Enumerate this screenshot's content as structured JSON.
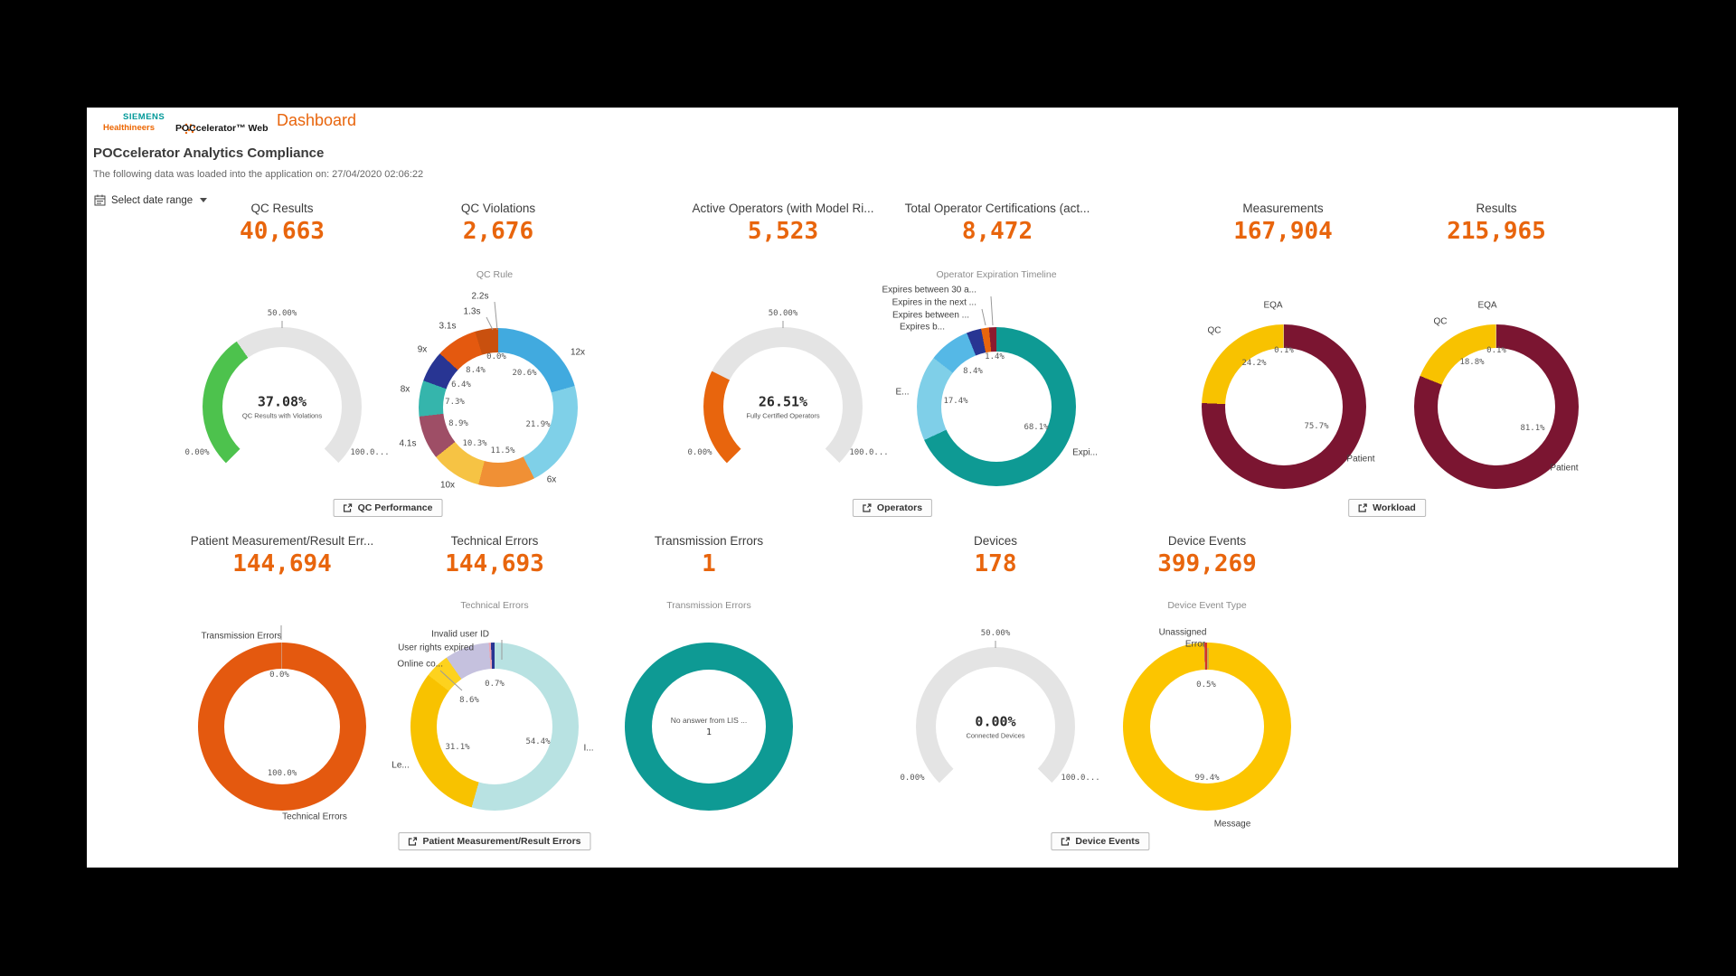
{
  "header": {
    "brand_line1": "SIEMENS",
    "brand_line2": "Healthineers",
    "product_name": "POCcelerator™ Web",
    "page_name": "Dashboard"
  },
  "page": {
    "title": "POCcelerator Analytics Compliance",
    "subtitle": "The following data was loaded into the application on: 27/04/2020 02:06:22",
    "date_range_label": "Select date range"
  },
  "colors": {
    "accent_orange": "#e8650d",
    "teal": "#0e9a94",
    "gauge_track": "#e4e4e4",
    "maroon": "#7b1531",
    "yellow": "#f8c200"
  },
  "kpis": [
    {
      "id": "qc-results",
      "label": "QC Results",
      "value": "40,663"
    },
    {
      "id": "qc-violations",
      "label": "QC Violations",
      "value": "2,676"
    },
    {
      "id": "active-operators",
      "label": "Active Operators (with Model Ri...",
      "value": "5,523"
    },
    {
      "id": "total-certs",
      "label": "Total Operator Certifications (act...",
      "value": "8,472"
    },
    {
      "id": "measurements",
      "label": "Measurements",
      "value": "167,904"
    },
    {
      "id": "results",
      "label": "Results",
      "value": "215,965"
    },
    {
      "id": "pm-errors",
      "label": "Patient Measurement/Result Err...",
      "value": "144,694"
    },
    {
      "id": "technical-errors",
      "label": "Technical Errors",
      "value": "144,693"
    },
    {
      "id": "transmission-errors",
      "label": "Transmission Errors",
      "value": "1"
    },
    {
      "id": "devices",
      "label": "Devices",
      "value": "178"
    },
    {
      "id": "device-events",
      "label": "Device Events",
      "value": "399,269"
    }
  ],
  "buttons": [
    {
      "id": "qc-performance",
      "label": "QC Performance"
    },
    {
      "id": "operators",
      "label": "Operators"
    },
    {
      "id": "workload",
      "label": "Workload"
    },
    {
      "id": "pm-result-errors",
      "label": "Patient Measurement/Result Errors"
    },
    {
      "id": "device-events",
      "label": "Device Events"
    }
  ],
  "chart_data": [
    {
      "id": "qc-results-gauge",
      "type": "gauge",
      "title": null,
      "gauge": {
        "value": 37.08,
        "color": "#4dc24d"
      },
      "center": {
        "value": "37.08%",
        "label": "QC Results with Violations"
      },
      "axis_labels": [
        {
          "text": "50.00%",
          "pos": [
            0,
            -103
          ]
        },
        {
          "text": "0.00%",
          "pos": [
            -94,
            51
          ]
        },
        {
          "text": "100.0...",
          "pos": [
            97,
            51
          ]
        }
      ],
      "lines": [
        [
          0,
          -95,
          0,
          -87
        ]
      ]
    },
    {
      "id": "qc-violations",
      "type": "donut",
      "title": "QC Rule",
      "title_pos": [
        -4,
        -147
      ],
      "segments": [
        {
          "label": "12x",
          "value": 20.6,
          "color": "#41aadf",
          "outer_pos": [
            88,
            -61
          ],
          "inner_label": "20.6%",
          "inner_pos": [
            29,
            -38
          ]
        },
        {
          "label": "6x",
          "value": 21.9,
          "color": "#7fd0e8",
          "outer_pos": [
            59,
            80
          ],
          "inner_label": "21.9%",
          "inner_pos": [
            44,
            19
          ]
        },
        {
          "label": "10x",
          "value": 11.5,
          "color": "#f09035",
          "outer_pos": [
            -56,
            86
          ],
          "inner_label": "11.5%",
          "inner_pos": [
            5,
            48
          ]
        },
        {
          "label": "4.1s",
          "value": 10.3,
          "color": "#f6c344",
          "outer_pos": [
            -100,
            40
          ],
          "inner_label": "10.3%",
          "inner_pos": [
            -26,
            40
          ]
        },
        {
          "label": "8x",
          "value": 8.9,
          "color": "#9e4e66",
          "outer_pos": [
            -103,
            -20
          ],
          "inner_label": "8.9%",
          "inner_pos": [
            -44,
            18
          ]
        },
        {
          "label": "9x",
          "value": 7.3,
          "color": "#35b5ac",
          "outer_pos": [
            -84,
            -64
          ],
          "inner_label": "7.3%",
          "inner_pos": [
            -48,
            -6
          ]
        },
        {
          "label": "3.1s",
          "value": 6.4,
          "color": "#283593",
          "outer_pos": [
            -56,
            -90
          ],
          "inner_label": "6.4%",
          "inner_pos": [
            -41,
            -25
          ]
        },
        {
          "label": "1.3s",
          "value": 8.4,
          "color": "#e4590f",
          "outer_pos": [
            -29,
            -106
          ],
          "inner_label": "8.4%",
          "inner_pos": [
            -25,
            -41
          ]
        },
        {
          "label": "2.2s",
          "value": 4.7,
          "color": "#c9500e",
          "outer_pos": [
            -20,
            -123
          ],
          "inner_label": null,
          "inner_pos": null
        }
      ],
      "extra_labels": [
        {
          "text": "0.0%",
          "pos": [
            -2,
            -56
          ],
          "cls": "pct"
        }
      ],
      "lines": [
        [
          -13,
          -100,
          -6,
          -86
        ],
        [
          -4,
          -117,
          -1,
          -86
        ]
      ]
    },
    {
      "id": "active-operators-gauge",
      "type": "gauge",
      "title": null,
      "gauge": {
        "value": 26.51,
        "color": "#e8650d"
      },
      "center": {
        "value": "26.51%",
        "label": "Fully Certified Operators"
      },
      "axis_labels": [
        {
          "text": "50.00%",
          "pos": [
            0,
            -103
          ]
        },
        {
          "text": "0.00%",
          "pos": [
            -92,
            51
          ]
        },
        {
          "text": "100.0...",
          "pos": [
            95,
            51
          ]
        }
      ],
      "lines": [
        [
          0,
          -95,
          0,
          -87
        ]
      ]
    },
    {
      "id": "operator-expiration",
      "type": "donut",
      "title": "Operator Expiration Timeline",
      "title_pos": [
        0,
        -146
      ],
      "segments": [
        {
          "label": "Expi...",
          "value": 68.1,
          "color": "#0e9a94",
          "outer_pos": [
            98,
            51
          ],
          "inner_label": "68.1%",
          "inner_pos": [
            44,
            23
          ]
        },
        {
          "label": "E...",
          "value": 17.4,
          "color": "#7fcfe8",
          "outer_pos": [
            -104,
            -16
          ],
          "inner_label": "17.4%",
          "inner_pos": [
            -45,
            -6
          ]
        },
        {
          "label": "Expires b...",
          "value": 8.4,
          "color": "#55b8e6",
          "outer_pos": [
            -57,
            -88
          ],
          "align": "r",
          "inner_label": "8.4%",
          "inner_pos": [
            -26,
            -39
          ]
        },
        {
          "label": "Expires between ...",
          "value": 3.0,
          "color": "#283593",
          "outer_pos": [
            -30,
            -101
          ],
          "align": "r",
          "inner_label": null,
          "inner_pos": null
        },
        {
          "label": "Expires in the next ...",
          "value": 1.6,
          "color": "#e8650d",
          "outer_pos": [
            -22,
            -115
          ],
          "align": "r",
          "inner_label": null,
          "inner_pos": null
        },
        {
          "label": "Expires between 30 a...",
          "value": 1.5,
          "color": "#8c1b2f",
          "outer_pos": [
            -22,
            -129
          ],
          "align": "r",
          "inner_label": null,
          "inner_pos": null
        }
      ],
      "extra_labels": [
        {
          "text": "1.4%",
          "pos": [
            -2,
            -55
          ],
          "cls": "pct"
        }
      ],
      "lines": [
        [
          -16,
          -108,
          -12,
          -90
        ],
        [
          -6,
          -122,
          -4,
          -90
        ]
      ]
    },
    {
      "id": "measurements",
      "type": "donut",
      "title": null,
      "segments": [
        {
          "label": "Patient",
          "value": 75.7,
          "color": "#7b1531",
          "outer_pos": [
            85,
            58
          ],
          "inner_label": "75.7%",
          "inner_pos": [
            36,
            22
          ]
        },
        {
          "label": "QC",
          "value": 24.2,
          "color": "#f8c200",
          "outer_pos": [
            -77,
            -84
          ],
          "inner_label": "24.2%",
          "inner_pos": [
            -33,
            -48
          ]
        },
        {
          "label": "EQA",
          "value": 0.1,
          "color": "#cccccc",
          "outer_pos": [
            -12,
            -112
          ],
          "inner_label": "0.1%",
          "inner_pos": [
            0,
            -62
          ]
        }
      ]
    },
    {
      "id": "results",
      "type": "donut",
      "title": null,
      "segments": [
        {
          "label": "Patient",
          "value": 81.1,
          "color": "#7b1531",
          "outer_pos": [
            75,
            68
          ],
          "inner_label": "81.1%",
          "inner_pos": [
            40,
            24
          ]
        },
        {
          "label": "QC",
          "value": 18.8,
          "color": "#f8c200",
          "outer_pos": [
            -62,
            -94
          ],
          "inner_label": "18.8%",
          "inner_pos": [
            -27,
            -49
          ]
        },
        {
          "label": "EQA",
          "value": 0.1,
          "color": "#cccccc",
          "outer_pos": [
            -10,
            -112
          ],
          "inner_label": "0.1%",
          "inner_pos": [
            0,
            -62
          ]
        }
      ]
    },
    {
      "id": "pm-errors",
      "type": "donut",
      "title": null,
      "segments": [
        {
          "label": "Technical Errors",
          "value": 99.9,
          "color": "#e4590f",
          "outer_pos": [
            36,
            100
          ],
          "inner_label": "100.0%",
          "inner_pos": [
            0,
            52
          ]
        },
        {
          "label": "Transmission Errors",
          "value": 0.1,
          "color": "#c8c8c8",
          "outer_pos": [
            -45,
            -100
          ],
          "inner_label": "0.0%",
          "inner_pos": [
            -3,
            -57
          ]
        }
      ],
      "lines": [
        [
          -1,
          -112,
          -1,
          -96
        ]
      ]
    },
    {
      "id": "technical-errors",
      "type": "donut",
      "title": "Technical Errors",
      "title_pos": [
        0,
        -134
      ],
      "segments": [
        {
          "label": "I...",
          "value": 54.4,
          "color": "#b8e2e2",
          "outer_pos": [
            104,
            24
          ],
          "inner_label": "54.4%",
          "inner_pos": [
            48,
            17
          ]
        },
        {
          "label": "Le...",
          "value": 31.1,
          "color": "#f8c200",
          "outer_pos": [
            -104,
            43
          ],
          "inner_label": "31.1%",
          "inner_pos": [
            -41,
            23
          ]
        },
        {
          "label": "Online co...",
          "value": 4.8,
          "color": "#fdd21e",
          "outer_pos": [
            -57,
            -69
          ],
          "align": "r",
          "inner_label": null,
          "inner_pos": null
        },
        {
          "label": "User rights expired",
          "value": 8.6,
          "color": "#c5c1de",
          "outer_pos": [
            -23,
            -87
          ],
          "align": "r",
          "inner_label": "8.6%",
          "inner_pos": [
            -28,
            -29
          ]
        },
        {
          "label": "",
          "value": 0.4,
          "color": "#eba6b3",
          "outer_pos": null,
          "inner_label": null,
          "inner_pos": null
        },
        {
          "label": "Invalid user ID",
          "value": 0.7,
          "color": "#283593",
          "outer_pos": [
            -6,
            -102
          ],
          "align": "r",
          "inner_label": "0.7%",
          "inner_pos": [
            0,
            -47
          ]
        }
      ],
      "lines": [
        [
          8,
          -96,
          8,
          -74
        ],
        [
          -60,
          -62,
          -36,
          -40
        ]
      ]
    },
    {
      "id": "transmission-errors",
      "type": "donut",
      "title": "Transmission Errors",
      "title_pos": [
        0,
        -134
      ],
      "segments": [
        {
          "label": "No answer from LIS ...",
          "value": 100,
          "color": "#0e9a94",
          "outer_pos": null,
          "inner_label": null,
          "inner_pos": null
        }
      ],
      "center": {
        "label_first": true,
        "label": "No answer from LIS ...",
        "value": "1"
      }
    },
    {
      "id": "devices-gauge",
      "type": "gauge",
      "title": null,
      "gauge": {
        "value": 0.0,
        "color": "#4dc24d"
      },
      "center": {
        "value": "0.00%",
        "label": "Connected Devices"
      },
      "axis_labels": [
        {
          "text": "50.00%",
          "pos": [
            0,
            -103
          ]
        },
        {
          "text": "0.00%",
          "pos": [
            -92,
            57
          ]
        },
        {
          "text": "100.0...",
          "pos": [
            94,
            57
          ]
        }
      ],
      "lines": [
        [
          0,
          -95,
          0,
          -87
        ]
      ]
    },
    {
      "id": "device-events",
      "type": "donut",
      "title": "Device Event Type",
      "title_pos": [
        0,
        -134
      ],
      "segments": [
        {
          "label": "Message",
          "value": 99.4,
          "color": "#fcc500",
          "outer_pos": [
            28,
            108
          ],
          "inner_label": "99.4%",
          "inner_pos": [
            0,
            57
          ]
        },
        {
          "label": "Unassigned",
          "value": 0.1,
          "color": "#9e9e9e",
          "outer_pos": [
            -27,
            -104
          ],
          "inner_label": null,
          "inner_pos": null
        },
        {
          "label": "Error",
          "value": 0.5,
          "color": "#d63426",
          "outer_pos": [
            -13,
            -91
          ],
          "inner_label": "0.5%",
          "inner_pos": [
            -1,
            -46
          ]
        }
      ],
      "lines": [
        [
          1,
          -87,
          1,
          -64
        ]
      ]
    }
  ]
}
